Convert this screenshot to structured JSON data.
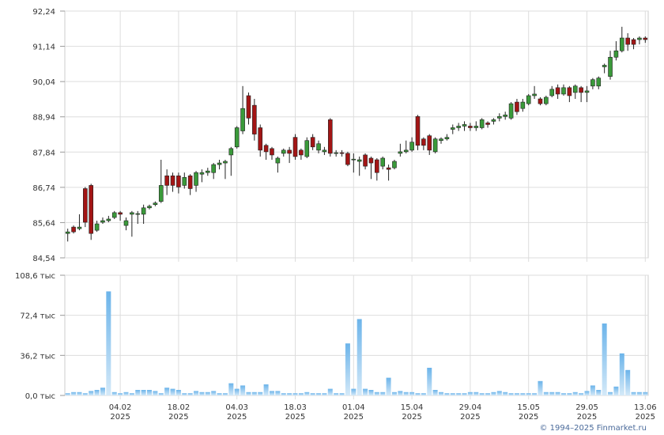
{
  "chart_data": [
    {
      "type": "candlestick",
      "categories": [
        null,
        null,
        null,
        null,
        null,
        null,
        null,
        null,
        null,
        null,
        null,
        null,
        null,
        null,
        null,
        null,
        null,
        null,
        null,
        null,
        null,
        null,
        null,
        null,
        null,
        null,
        null,
        null,
        null,
        null,
        null,
        null,
        null,
        null,
        null,
        null,
        null,
        null,
        null,
        null,
        null,
        null,
        null,
        null,
        null,
        null,
        null,
        null,
        null,
        null,
        null,
        null,
        null,
        null,
        null,
        null,
        null,
        null,
        null,
        null,
        null,
        null,
        null,
        null,
        null,
        null,
        null,
        null,
        null,
        null,
        null,
        null,
        null,
        null,
        null,
        null,
        null,
        null,
        null,
        null,
        null,
        null,
        null,
        null,
        null,
        null,
        null,
        null,
        null,
        null,
        null,
        null,
        null,
        null,
        null,
        null,
        null,
        null,
        null,
        null
      ],
      "open": [
        85.3,
        85.5,
        85.45,
        86.7,
        86.8,
        85.4,
        85.65,
        85.7,
        85.8,
        85.95,
        85.55,
        85.9,
        85.9,
        85.9,
        86.1,
        86.2,
        86.3,
        87.1,
        87.1,
        87.1,
        86.8,
        87.1,
        86.8,
        87.15,
        87.2,
        87.2,
        87.45,
        87.5,
        87.75,
        88.0,
        88.5,
        89.6,
        89.3,
        88.6,
        88.05,
        87.95,
        87.5,
        87.8,
        87.9,
        88.3,
        87.9,
        87.7,
        88.3,
        87.9,
        87.85,
        88.85,
        87.8,
        87.82,
        87.8,
        87.6,
        87.55,
        87.75,
        87.65,
        87.6,
        87.4,
        87.35,
        87.35,
        87.8,
        87.85,
        87.9,
        88.95,
        88.25,
        88.35,
        87.85,
        88.2,
        88.25,
        88.55,
        88.6,
        88.65,
        88.65,
        88.6,
        88.6,
        88.75,
        88.8,
        88.9,
        88.95,
        88.9,
        89.4,
        89.2,
        89.35,
        89.6,
        89.5,
        89.35,
        89.6,
        89.85,
        89.65,
        89.85,
        89.7,
        89.85,
        89.7,
        89.9,
        89.9,
        90.5,
        90.2,
        90.8,
        91.0,
        91.4,
        91.35,
        91.35,
        91.4
      ],
      "high": [
        85.45,
        85.55,
        85.9,
        86.75,
        86.85,
        85.7,
        85.8,
        85.85,
        86.0,
        86.0,
        85.8,
        86.0,
        86.0,
        86.2,
        86.2,
        86.3,
        87.6,
        87.3,
        87.2,
        87.2,
        87.2,
        87.15,
        87.25,
        87.3,
        87.35,
        87.5,
        87.6,
        87.6,
        88.0,
        88.65,
        89.9,
        89.7,
        89.5,
        88.7,
        88.1,
        88.0,
        87.7,
        87.95,
        88.0,
        88.4,
        87.95,
        88.3,
        88.4,
        88.2,
        88.0,
        88.9,
        87.9,
        87.9,
        87.85,
        87.8,
        87.7,
        87.8,
        87.7,
        87.65,
        87.7,
        87.45,
        87.6,
        88.1,
        88.2,
        88.3,
        89.0,
        88.3,
        88.4,
        88.3,
        88.3,
        88.4,
        88.7,
        88.75,
        88.8,
        88.75,
        88.8,
        88.9,
        88.8,
        88.9,
        89.05,
        89.1,
        89.4,
        89.5,
        89.5,
        89.65,
        89.9,
        89.55,
        89.6,
        89.9,
        89.95,
        89.95,
        89.9,
        89.95,
        89.9,
        89.9,
        90.15,
        90.2,
        90.6,
        91.0,
        91.3,
        91.75,
        91.55,
        91.4,
        91.45,
        91.45
      ],
      "low": [
        85.05,
        85.3,
        85.4,
        85.5,
        85.1,
        85.35,
        85.6,
        85.65,
        85.75,
        85.7,
        85.4,
        85.2,
        85.6,
        85.6,
        86.05,
        86.15,
        86.25,
        86.5,
        86.6,
        86.55,
        86.7,
        86.5,
        86.6,
        86.9,
        87.1,
        87.0,
        87.3,
        87.0,
        87.1,
        87.95,
        88.4,
        88.7,
        88.2,
        87.7,
        87.6,
        87.6,
        87.2,
        87.7,
        87.5,
        87.6,
        87.6,
        87.65,
        87.9,
        87.8,
        87.75,
        87.7,
        87.7,
        87.7,
        87.4,
        87.2,
        87.1,
        87.3,
        87.0,
        86.95,
        87.3,
        86.95,
        87.3,
        87.7,
        87.8,
        87.85,
        87.9,
        87.9,
        87.75,
        87.8,
        88.1,
        88.2,
        88.4,
        88.5,
        88.5,
        88.5,
        88.5,
        88.55,
        88.6,
        88.7,
        88.8,
        88.85,
        88.85,
        89.0,
        89.1,
        89.3,
        89.5,
        89.3,
        89.3,
        89.55,
        89.5,
        89.6,
        89.4,
        89.5,
        89.4,
        89.4,
        89.8,
        89.8,
        90.3,
        90.1,
        90.7,
        90.95,
        91.0,
        91.05,
        91.2,
        91.25
      ],
      "close": [
        85.35,
        85.35,
        85.5,
        85.65,
        85.3,
        85.6,
        85.7,
        85.75,
        85.95,
        85.9,
        85.7,
        85.95,
        85.92,
        86.1,
        86.15,
        86.25,
        86.8,
        86.8,
        86.8,
        86.75,
        87.05,
        86.7,
        87.2,
        87.2,
        87.25,
        87.45,
        87.5,
        87.55,
        87.95,
        88.6,
        89.2,
        88.9,
        88.4,
        87.9,
        87.85,
        87.75,
        87.65,
        87.9,
        87.8,
        87.7,
        87.75,
        88.2,
        88.0,
        88.1,
        87.9,
        87.8,
        87.82,
        87.8,
        87.45,
        87.62,
        87.6,
        87.4,
        87.5,
        87.2,
        87.65,
        87.3,
        87.55,
        87.85,
        87.9,
        88.15,
        88.05,
        88.05,
        87.9,
        88.25,
        88.25,
        88.3,
        88.6,
        88.65,
        88.7,
        88.6,
        88.65,
        88.85,
        88.7,
        88.85,
        88.95,
        89.0,
        89.35,
        89.1,
        89.4,
        89.6,
        89.65,
        89.35,
        89.55,
        89.8,
        89.65,
        89.85,
        89.6,
        89.9,
        89.7,
        89.75,
        90.1,
        90.15,
        90.55,
        90.8,
        91.0,
        91.4,
        91.2,
        91.2,
        91.4,
        91.35
      ],
      "up_color": "#3a9a3a",
      "down_color": "#a31515",
      "ylim": [
        84.54,
        92.24
      ],
      "yticks": [
        {
          "value": 84.54,
          "label": "84,54"
        },
        {
          "value": 85.64,
          "label": "85,64"
        },
        {
          "value": 86.74,
          "label": "86,74"
        },
        {
          "value": 87.84,
          "label": "87,84"
        },
        {
          "value": 88.94,
          "label": "88,94"
        },
        {
          "value": 90.04,
          "label": "90,04"
        },
        {
          "value": 91.14,
          "label": "91,14"
        },
        {
          "value": 92.24,
          "label": "92,24"
        }
      ],
      "grid": true
    },
    {
      "type": "bar",
      "categories": [
        null,
        null,
        null,
        null,
        null,
        null,
        null,
        null,
        null,
        [
          "04.02",
          "2025"
        ],
        null,
        null,
        null,
        null,
        null,
        null,
        null,
        null,
        null,
        [
          "18.02",
          "2025"
        ],
        null,
        null,
        null,
        null,
        null,
        null,
        null,
        null,
        null,
        [
          "04.03",
          "2025"
        ],
        null,
        null,
        null,
        null,
        null,
        null,
        null,
        null,
        null,
        [
          "18.03",
          "2025"
        ],
        null,
        null,
        null,
        null,
        null,
        null,
        null,
        null,
        null,
        [
          "01.04",
          "2025"
        ],
        null,
        null,
        null,
        null,
        null,
        null,
        null,
        null,
        null,
        [
          "15.04",
          "2025"
        ],
        null,
        null,
        null,
        null,
        null,
        null,
        null,
        null,
        null,
        [
          "29.04",
          "2025"
        ],
        null,
        null,
        null,
        null,
        null,
        null,
        null,
        null,
        null,
        [
          "15.05",
          "2025"
        ],
        null,
        null,
        null,
        null,
        null,
        null,
        null,
        null,
        null,
        [
          "29.05",
          "2025"
        ],
        null,
        null,
        null,
        null,
        null,
        null,
        null,
        null,
        null,
        [
          "13.06",
          "2025"
        ]
      ],
      "values": [
        2,
        3,
        3,
        2,
        4,
        5,
        7,
        94,
        3,
        2,
        3,
        2,
        5,
        5,
        5,
        4,
        2,
        7,
        6,
        5,
        2,
        2,
        4,
        3,
        3,
        4,
        2,
        2,
        11,
        6,
        9,
        3,
        3,
        3,
        10,
        4,
        4,
        2,
        2,
        2,
        2,
        3,
        2,
        2,
        2,
        6,
        2,
        2,
        47,
        6,
        69,
        6,
        5,
        3,
        3,
        16,
        3,
        4,
        3,
        3,
        2,
        2,
        25,
        5,
        3,
        2,
        2,
        2,
        2,
        3,
        3,
        2,
        2,
        3,
        4,
        3,
        2,
        2,
        2,
        2,
        2,
        13,
        3,
        3,
        3,
        2,
        2,
        3,
        2,
        4,
        9,
        5,
        65,
        3,
        8,
        38,
        23,
        3,
        3,
        3
      ],
      "color": "#7fc0ee",
      "ylim": [
        0,
        108.6
      ],
      "yticks": [
        {
          "value": 0,
          "label": "0,0 тыс"
        },
        {
          "value": 36.2,
          "label": "36,2 тыс"
        },
        {
          "value": 72.4,
          "label": "72,4 тыс"
        },
        {
          "value": 108.6,
          "label": "108,6 тыс"
        }
      ],
      "grid": true
    }
  ],
  "footer": "© 1994–2025 Finmarket.ru"
}
